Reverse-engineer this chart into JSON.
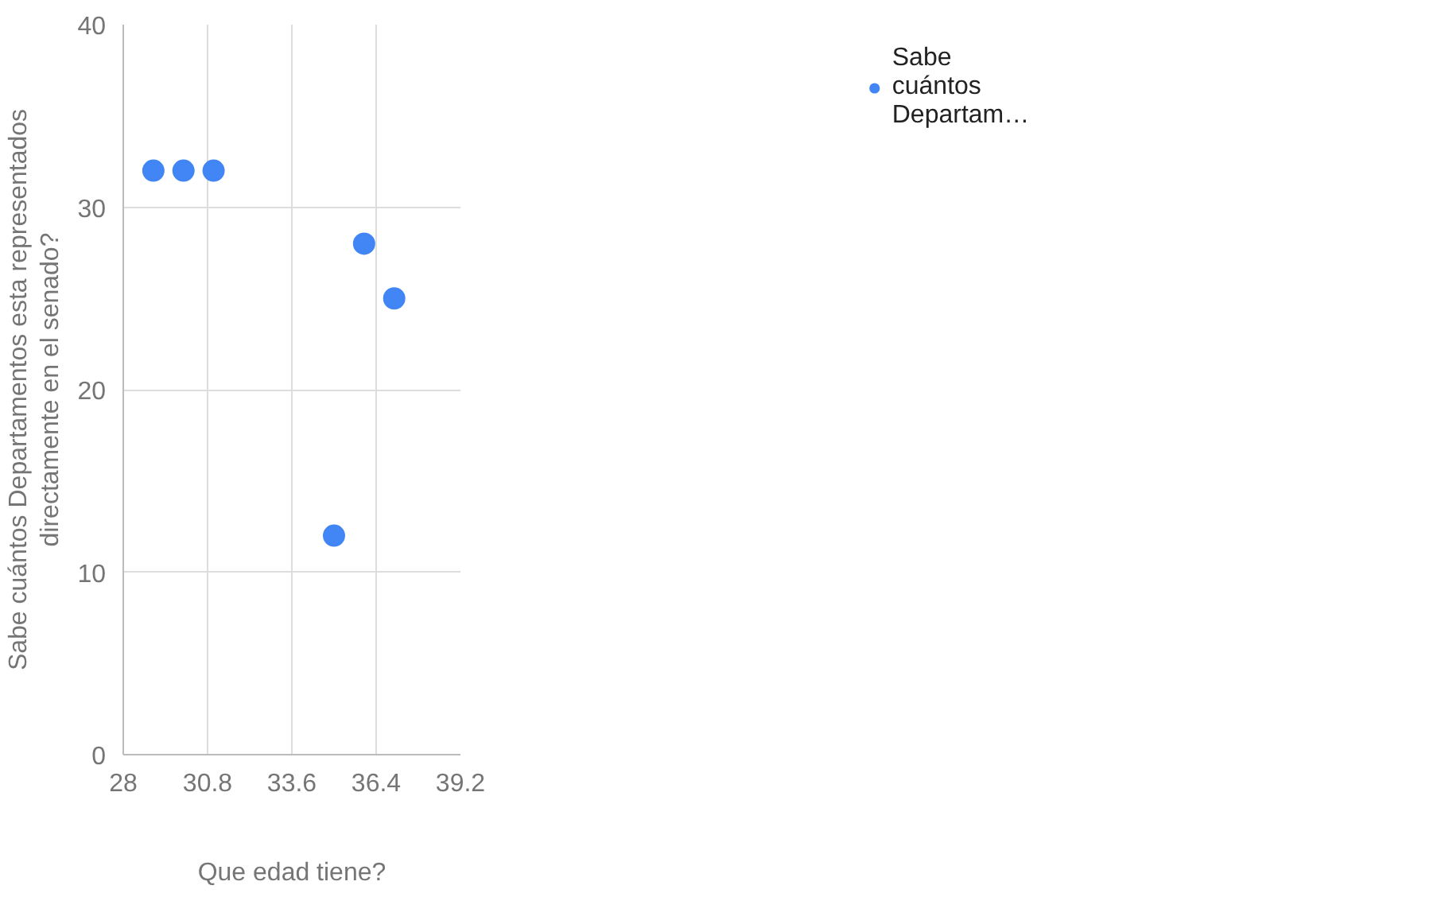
{
  "chart_data": {
    "type": "scatter",
    "xlabel": "Que edad tiene?",
    "ylabel": "Sabe cuántos Departamentos esta representados directamente en el senado?",
    "x": [
      29,
      30,
      31,
      35,
      36,
      37
    ],
    "series": [
      {
        "name": "Sabe cuántos Departam…",
        "color": "#4285f4",
        "values": [
          32,
          32,
          32,
          12,
          28,
          25
        ]
      }
    ],
    "xlim": [
      28,
      39.2
    ],
    "xticks": [
      28,
      30.8,
      33.6,
      36.4,
      39.2
    ],
    "ylim": [
      0,
      40
    ],
    "yticks": [
      0,
      10,
      20,
      30,
      40
    ],
    "grid": true,
    "legend": "right",
    "marker": "circle"
  }
}
